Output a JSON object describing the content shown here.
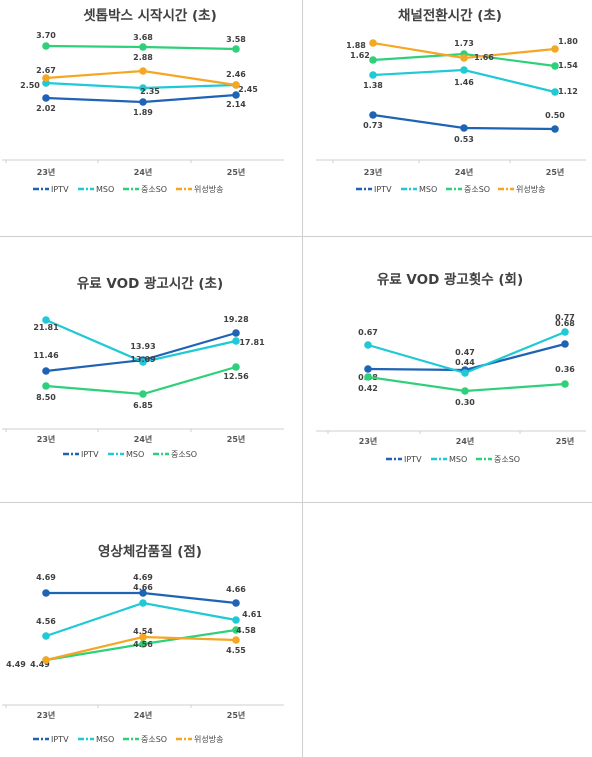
{
  "colors": {
    "IPTV": "#1f63b5",
    "MSO": "#1fc9d6",
    "중소SO": "#2fd07a",
    "위성방송": "#f5a623"
  },
  "chart_data": [
    {
      "type": "line",
      "title": "셋톱박스 시작시간 (초)",
      "categories": [
        "23년",
        "24년",
        "25년"
      ],
      "series": [
        {
          "name": "IPTV",
          "values": [
            2.02,
            1.89,
            2.14
          ]
        },
        {
          "name": "MSO",
          "values": [
            2.5,
            2.35,
            2.45
          ]
        },
        {
          "name": "중소SO",
          "values": [
            3.7,
            3.68,
            3.58
          ]
        },
        {
          "name": "위성방송",
          "values": [
            2.67,
            2.88,
            2.46
          ]
        }
      ],
      "labels": [
        [
          "2.02",
          "1.89",
          "2.14"
        ],
        [
          "2.50",
          "2.35",
          "2.45"
        ],
        [
          "3.70",
          "3.68",
          "3.58"
        ],
        [
          "2.67",
          "2.88",
          "2.46"
        ]
      ]
    },
    {
      "type": "line",
      "title": "채널전환시간 (초)",
      "categories": [
        "23년",
        "24년",
        "25년"
      ],
      "series": [
        {
          "name": "IPTV",
          "values": [
            0.73,
            0.53,
            0.5
          ]
        },
        {
          "name": "MSO",
          "values": [
            1.38,
            1.46,
            1.12
          ]
        },
        {
          "name": "중소SO",
          "values": [
            1.62,
            1.73,
            1.54
          ]
        },
        {
          "name": "위성방송",
          "values": [
            1.88,
            1.66,
            1.8
          ]
        }
      ],
      "labels": [
        [
          "0.73",
          "0.53",
          "0.50"
        ],
        [
          "1.38",
          "1.46",
          "1.12"
        ],
        [
          "1.62",
          "1.73",
          "1.54"
        ],
        [
          "1.88",
          "1.66",
          "1.80"
        ]
      ]
    },
    {
      "type": "line",
      "title": "유료 VOD 광고시간 (초)",
      "categories": [
        "23년",
        "24년",
        "25년"
      ],
      "series": [
        {
          "name": "IPTV",
          "values": [
            11.46,
            13.93,
            19.28
          ]
        },
        {
          "name": "MSO",
          "values": [
            21.81,
            13.09,
            17.81
          ]
        },
        {
          "name": "중소SO",
          "values": [
            8.5,
            6.85,
            12.56
          ]
        }
      ],
      "labels": [
        [
          "11.46",
          "13.93",
          "19.28"
        ],
        [
          "21.81",
          "13.09",
          "17.81"
        ],
        [
          "8.50",
          "6.85",
          "12.56"
        ]
      ]
    },
    {
      "type": "line",
      "title": "유료 VOD 광고횟수 (회)",
      "categories": [
        "23년",
        "24년",
        "25년"
      ],
      "series": [
        {
          "name": "IPTV",
          "values": [
            0.48,
            0.47,
            0.68
          ]
        },
        {
          "name": "MSO",
          "values": [
            0.67,
            0.44,
            0.77
          ]
        },
        {
          "name": "중소SO",
          "values": [
            0.42,
            0.3,
            0.36
          ]
        }
      ],
      "labels": [
        [
          "0.48",
          "0.47",
          "0.68"
        ],
        [
          "0.67",
          "0.44",
          "0.77"
        ],
        [
          "0.42",
          "0.30",
          "0.36"
        ]
      ]
    },
    {
      "type": "line",
      "title": "영상체감품질 (점)",
      "categories": [
        "23년",
        "24년",
        "25년"
      ],
      "series": [
        {
          "name": "IPTV",
          "values": [
            4.69,
            4.69,
            4.66
          ]
        },
        {
          "name": "MSO",
          "values": [
            4.56,
            4.66,
            4.61
          ]
        },
        {
          "name": "중소SO",
          "values": [
            4.49,
            4.56,
            4.58
          ]
        },
        {
          "name": "위성방송",
          "values": [
            4.49,
            4.54,
            4.55
          ]
        }
      ],
      "labels": [
        [
          "4.69",
          "4.69",
          "4.66"
        ],
        [
          "4.56",
          "4.66",
          "4.61"
        ],
        [
          "4.49",
          "4.56",
          "4.58"
        ],
        [
          "4.49",
          "4.54",
          "4.55"
        ]
      ]
    }
  ]
}
